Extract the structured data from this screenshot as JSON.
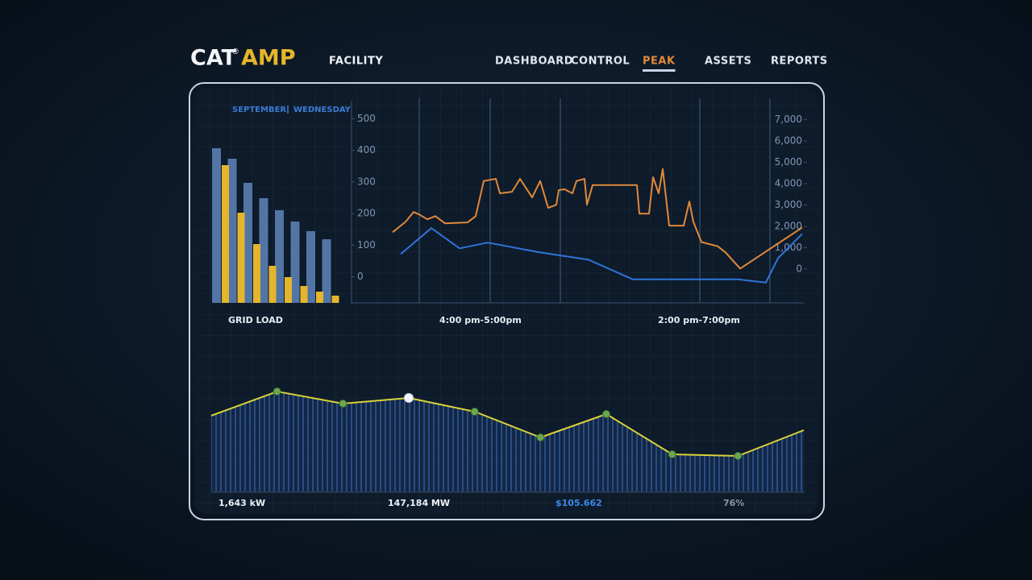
{
  "header": {
    "brand": "CAT",
    "brand_mark": "®",
    "brand_accent": "AMP",
    "section": "FACILITY"
  },
  "nav": {
    "items": [
      "DASHBOARD",
      "CONTROL",
      "PEAK",
      "ASSETS",
      "REPORTS"
    ],
    "active": 2
  },
  "date": {
    "month": "SEPTEMBER",
    "day": "WEDNESDAY"
  },
  "chart_data": [
    {
      "type": "bar",
      "title": "GRID LOAD",
      "ylim": [
        0,
        200
      ],
      "series": [
        {
          "color": "#5a80b4",
          "values": [
            192,
            179,
            149,
            130,
            115,
            101,
            89,
            79
          ]
        },
        {
          "color": "#e6b52c",
          "values": [
            171,
            112,
            73,
            46,
            32,
            21,
            14,
            9
          ]
        }
      ]
    },
    {
      "type": "line",
      "xlim": [
        0,
        560
      ],
      "ylim": [
        -80,
        570
      ],
      "yticks": [
        0,
        100,
        200,
        300,
        400,
        500
      ],
      "y2lim": [
        -1550,
        8080
      ],
      "y2ticks": [
        0,
        {
          "value": 1000,
          "label": "1,000"
        },
        {
          "value": 2000,
          "label": "2,000"
        },
        {
          "value": 3000,
          "label": "3,000"
        },
        {
          "value": 4000,
          "label": "4,000"
        },
        {
          "value": 5000,
          "label": "5,000"
        },
        {
          "value": 6000,
          "label": "6,000"
        },
        {
          "value": 7000,
          "label": "7,000"
        }
      ],
      "annotations": [
        "4:00 pm-5:00pm",
        "2:00 pm-7:00pm"
      ],
      "series": [
        {
          "color": "#e0893a",
          "x": [
            50,
            66,
            76,
            83,
            93,
            103,
            115,
            143,
            153,
            163,
            178,
            183,
            198,
            208,
            223,
            233,
            243,
            253,
            256,
            263,
            273,
            278,
            288,
            291,
            298,
            353,
            356,
            368,
            373,
            380,
            385,
            393,
            411,
            418,
            423,
            433,
            453,
            463,
            481,
            558
          ],
          "values": [
            141,
            174,
            205,
            197,
            182,
            192,
            169,
            172,
            192,
            303,
            310,
            264,
            269,
            310,
            251,
            303,
            218,
            228,
            274,
            277,
            264,
            303,
            310,
            228,
            290,
            290,
            200,
            200,
            315,
            264,
            341,
            162,
            162,
            238,
            174,
            110,
            97,
            77,
            26,
            156
          ]
        },
        {
          "color": "#2f74d9",
          "x": [
            60,
            98,
            133,
            168,
            233,
            293,
            348,
            478,
            513,
            528,
            558
          ],
          "values": [
            72,
            154,
            90,
            108,
            77,
            54,
            -8,
            -8,
            -18,
            59,
            136
          ]
        }
      ]
    },
    {
      "type": "area",
      "color": "#d8d23a",
      "ylim": [
        0,
        150
      ],
      "highlight": 3,
      "values": [
        94,
        124,
        109,
        116,
        99,
        67,
        96,
        46,
        44,
        76
      ]
    }
  ],
  "footer": {
    "stats": [
      "1,643 kW",
      "147,184 MW",
      "$105.662",
      "76%"
    ]
  }
}
